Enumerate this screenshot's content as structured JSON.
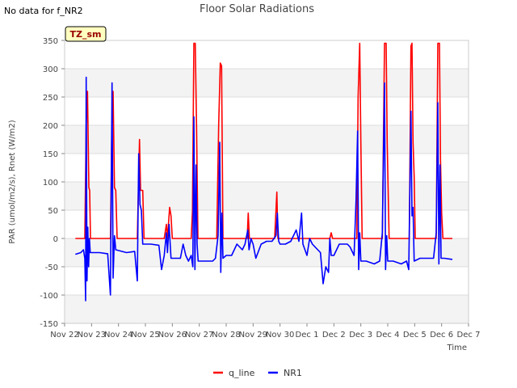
{
  "corner_note": "No data for f_NR2",
  "site_badge": "TZ_sm",
  "chart_data": {
    "type": "line",
    "title": "Floor Solar Radiations",
    "xlabel": "Time",
    "ylabel": "PAR (umol/m2/s), Rnet (W/m2)",
    "xlim": [
      0,
      15
    ],
    "ylim": [
      -150,
      350
    ],
    "yticks": [
      -150,
      -100,
      -50,
      0,
      50,
      100,
      150,
      200,
      250,
      300,
      350
    ],
    "xtick_values": [
      0,
      1,
      2,
      3,
      4,
      5,
      6,
      7,
      8,
      9,
      10,
      11,
      12,
      13,
      14,
      15
    ],
    "xtick_labels": [
      "Nov 22",
      "Nov 23",
      "Nov 24",
      "Nov 25",
      "Nov 26",
      "Nov 27",
      "Nov 28",
      "Nov 29",
      "Nov 30",
      "Dec 1",
      "Dec 2",
      "Dec 3",
      "Dec 4",
      "Dec 5",
      "Dec 6",
      "Dec 7"
    ],
    "x_unit": "days since Nov 22",
    "colors": {
      "q_line": "#ff0000",
      "NR1": "#0000ff"
    },
    "series": [
      {
        "name": "q_line",
        "points": [
          [
            0.4,
            0
          ],
          [
            0.75,
            0
          ],
          [
            0.8,
            200
          ],
          [
            0.85,
            260
          ],
          [
            0.9,
            90
          ],
          [
            0.93,
            85
          ],
          [
            0.96,
            0
          ],
          [
            1.7,
            0
          ],
          [
            1.75,
            180
          ],
          [
            1.8,
            260
          ],
          [
            1.85,
            90
          ],
          [
            1.9,
            85
          ],
          [
            1.95,
            0
          ],
          [
            2.7,
            0
          ],
          [
            2.78,
            175
          ],
          [
            2.82,
            85
          ],
          [
            2.9,
            85
          ],
          [
            2.95,
            0
          ],
          [
            3.7,
            0
          ],
          [
            3.78,
            25
          ],
          [
            3.82,
            0
          ],
          [
            3.9,
            55
          ],
          [
            3.95,
            40
          ],
          [
            4.0,
            0
          ],
          [
            4.7,
            0
          ],
          [
            4.75,
            50
          ],
          [
            4.8,
            345
          ],
          [
            4.85,
            345
          ],
          [
            4.9,
            200
          ],
          [
            4.95,
            0
          ],
          [
            5.65,
            0
          ],
          [
            5.72,
            200
          ],
          [
            5.78,
            310
          ],
          [
            5.83,
            305
          ],
          [
            5.88,
            0
          ],
          [
            6.78,
            0
          ],
          [
            6.82,
            45
          ],
          [
            6.86,
            0
          ],
          [
            7.8,
            0
          ],
          [
            7.88,
            82
          ],
          [
            7.92,
            0
          ],
          [
            9.85,
            0
          ],
          [
            9.9,
            10
          ],
          [
            9.95,
            0
          ],
          [
            10.85,
            0
          ],
          [
            10.9,
            250
          ],
          [
            10.96,
            345
          ],
          [
            11.0,
            170
          ],
          [
            11.05,
            0
          ],
          [
            11.8,
            0
          ],
          [
            11.88,
            345
          ],
          [
            11.94,
            345
          ],
          [
            11.98,
            170
          ],
          [
            12.05,
            0
          ],
          [
            12.8,
            0
          ],
          [
            12.86,
            340
          ],
          [
            12.9,
            345
          ],
          [
            12.94,
            170
          ],
          [
            12.98,
            110
          ],
          [
            13.02,
            0
          ],
          [
            13.8,
            0
          ],
          [
            13.86,
            345
          ],
          [
            13.92,
            345
          ],
          [
            13.96,
            140
          ],
          [
            14.0,
            45
          ],
          [
            14.05,
            0
          ],
          [
            14.4,
            0
          ]
        ]
      },
      {
        "name": "NR1",
        "points": [
          [
            0.4,
            -28
          ],
          [
            0.6,
            -25
          ],
          [
            0.7,
            -20
          ],
          [
            0.75,
            -35
          ],
          [
            0.78,
            -110
          ],
          [
            0.8,
            285
          ],
          [
            0.83,
            -75
          ],
          [
            0.86,
            20
          ],
          [
            0.89,
            -50
          ],
          [
            0.92,
            0
          ],
          [
            0.95,
            -25
          ],
          [
            1.3,
            -25
          ],
          [
            1.6,
            -27
          ],
          [
            1.7,
            -100
          ],
          [
            1.76,
            275
          ],
          [
            1.8,
            -70
          ],
          [
            1.85,
            5
          ],
          [
            1.9,
            -20
          ],
          [
            2.3,
            -25
          ],
          [
            2.6,
            -23
          ],
          [
            2.7,
            -75
          ],
          [
            2.75,
            150
          ],
          [
            2.8,
            60
          ],
          [
            2.85,
            50
          ],
          [
            2.9,
            -10
          ],
          [
            3.2,
            -10
          ],
          [
            3.5,
            -12
          ],
          [
            3.6,
            -55
          ],
          [
            3.7,
            -30
          ],
          [
            3.78,
            10
          ],
          [
            3.82,
            -25
          ],
          [
            3.88,
            25
          ],
          [
            3.95,
            -35
          ],
          [
            4.3,
            -35
          ],
          [
            4.4,
            -10
          ],
          [
            4.5,
            -30
          ],
          [
            4.6,
            -40
          ],
          [
            4.7,
            -30
          ],
          [
            4.76,
            -50
          ],
          [
            4.8,
            215
          ],
          [
            4.84,
            -55
          ],
          [
            4.88,
            130
          ],
          [
            4.92,
            -10
          ],
          [
            4.96,
            -40
          ],
          [
            5.2,
            -40
          ],
          [
            5.5,
            -40
          ],
          [
            5.6,
            -35
          ],
          [
            5.7,
            5
          ],
          [
            5.76,
            170
          ],
          [
            5.8,
            -60
          ],
          [
            5.84,
            45
          ],
          [
            5.88,
            -35
          ],
          [
            6.0,
            -30
          ],
          [
            6.2,
            -30
          ],
          [
            6.4,
            -10
          ],
          [
            6.6,
            -20
          ],
          [
            6.7,
            -10
          ],
          [
            6.8,
            15
          ],
          [
            6.85,
            -20
          ],
          [
            6.92,
            0
          ],
          [
            7.0,
            -10
          ],
          [
            7.1,
            -35
          ],
          [
            7.3,
            -10
          ],
          [
            7.5,
            -5
          ],
          [
            7.7,
            -5
          ],
          [
            7.85,
            5
          ],
          [
            7.9,
            45
          ],
          [
            7.95,
            -5
          ],
          [
            8.0,
            -10
          ],
          [
            8.2,
            -10
          ],
          [
            8.4,
            -5
          ],
          [
            8.6,
            15
          ],
          [
            8.7,
            -5
          ],
          [
            8.8,
            45
          ],
          [
            8.85,
            -10
          ],
          [
            9.0,
            -30
          ],
          [
            9.1,
            0
          ],
          [
            9.2,
            -10
          ],
          [
            9.3,
            -15
          ],
          [
            9.5,
            -25
          ],
          [
            9.6,
            -80
          ],
          [
            9.7,
            -50
          ],
          [
            9.8,
            -60
          ],
          [
            9.85,
            0
          ],
          [
            9.9,
            -30
          ],
          [
            10.0,
            -30
          ],
          [
            10.2,
            -10
          ],
          [
            10.5,
            -10
          ],
          [
            10.6,
            -15
          ],
          [
            10.75,
            -30
          ],
          [
            10.82,
            65
          ],
          [
            10.88,
            190
          ],
          [
            10.92,
            -55
          ],
          [
            10.96,
            10
          ],
          [
            11.0,
            -40
          ],
          [
            11.2,
            -40
          ],
          [
            11.5,
            -45
          ],
          [
            11.7,
            -40
          ],
          [
            11.8,
            10
          ],
          [
            11.88,
            275
          ],
          [
            11.92,
            -55
          ],
          [
            11.96,
            5
          ],
          [
            12.0,
            -40
          ],
          [
            12.2,
            -40
          ],
          [
            12.5,
            -45
          ],
          [
            12.7,
            -40
          ],
          [
            12.78,
            -55
          ],
          [
            12.86,
            225
          ],
          [
            12.9,
            40
          ],
          [
            12.94,
            55
          ],
          [
            12.98,
            -40
          ],
          [
            13.2,
            -35
          ],
          [
            13.5,
            -35
          ],
          [
            13.7,
            -35
          ],
          [
            13.8,
            10
          ],
          [
            13.86,
            240
          ],
          [
            13.9,
            -45
          ],
          [
            13.94,
            130
          ],
          [
            13.98,
            -35
          ],
          [
            14.1,
            -35
          ],
          [
            14.4,
            -37
          ]
        ]
      }
    ],
    "legend": {
      "position": "bottom-center",
      "entries": [
        {
          "label": "q_line",
          "color": "#ff0000"
        },
        {
          "label": "NR1",
          "color": "#0000ff"
        }
      ]
    },
    "grid": true,
    "background_bands": true
  }
}
